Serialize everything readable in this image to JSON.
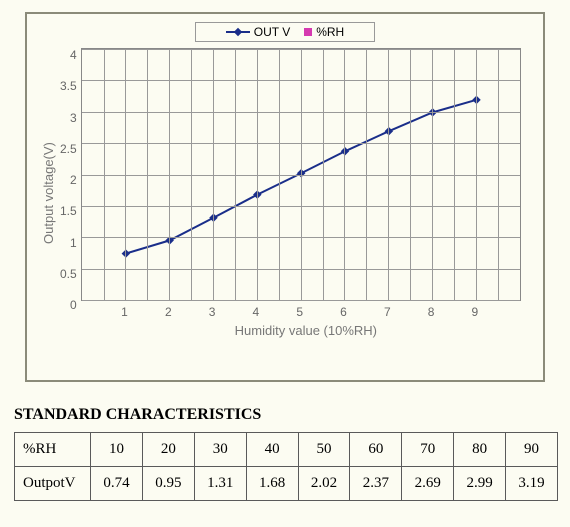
{
  "chart": {
    "type": "line",
    "legend": {
      "series1": "OUT V",
      "series2": "%RH"
    },
    "series1_color": "#1a2e8a",
    "series2_color": "#d63ab0",
    "xlabel": "Humidity value (10%RH)",
    "ylabel": "Output voltage(V)",
    "label_fontsize": 13,
    "label_color": "#777777",
    "xlim": [
      1,
      9
    ],
    "ylim": [
      0,
      4
    ],
    "ytick_step": 0.5,
    "yticks": [
      "4",
      "3.5",
      "3",
      "2.5",
      "2",
      "1.5",
      "1",
      "0.5",
      "0"
    ],
    "xticks": [
      "1",
      "2",
      "3",
      "4",
      "5",
      "6",
      "7",
      "8",
      "9"
    ],
    "x_values": [
      1,
      2,
      3,
      4,
      5,
      6,
      7,
      8,
      9
    ],
    "y_values": [
      0.74,
      0.95,
      1.31,
      1.68,
      2.02,
      2.37,
      2.69,
      2.99,
      3.19
    ],
    "marker": "diamond",
    "marker_size": 6,
    "line_width": 2,
    "background_color": "#fcfcf2",
    "grid_color": "#999999",
    "border_color": "#8b8b7a"
  },
  "table": {
    "title": "STANDARD CHARACTERISTICS",
    "row1_head": "%RH",
    "row2_head": "OutpotV",
    "rh": [
      "10",
      "20",
      "30",
      "40",
      "50",
      "60",
      "70",
      "80",
      "90"
    ],
    "outv": [
      "0.74",
      "0.95",
      "1.31",
      "1.68",
      "2.02",
      "2.37",
      "2.69",
      "2.99",
      "3.19"
    ]
  }
}
